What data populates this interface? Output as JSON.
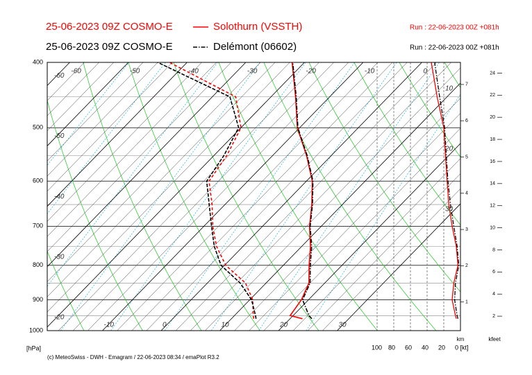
{
  "chart_data": {
    "type": "emagram",
    "series": [
      {
        "model": "25-06-2023 09Z COSMO-E",
        "name": "Solothurn (VSSTH)",
        "run": "Run : 22-06-2023 00Z +081h",
        "color": "#ff0000",
        "line": "solid",
        "temperature": [
          22.1,
          19.5,
          18.8,
          17.3,
          14.4,
          11.5,
          8.0,
          4.8,
          1.0,
          -4.2,
          -10.4,
          -15.8,
          -22.1
        ],
        "dewpoint": [
          13.8,
          13.2,
          10.5,
          6.5,
          0.2,
          -4.5,
          -8.5,
          -12.2,
          -16.6,
          -17.8,
          -20.0,
          -26.0,
          -43.0
        ],
        "wind_speed": [
          5,
          6,
          10,
          8,
          3,
          5,
          10,
          14,
          16,
          18,
          20,
          28,
          35
        ]
      },
      {
        "model": "25-06-2023 09Z COSMO-E",
        "name": "Delémont (06602)",
        "run": "Run : 22-06-2023 00Z +081h",
        "color": "#000000",
        "line": "dashdot",
        "temperature": [
          23.7,
          22.7,
          19.0,
          17.5,
          14.6,
          11.7,
          8.1,
          4.9,
          1.1,
          -4.1,
          -10.3,
          -15.7,
          -22.0
        ],
        "dewpoint": [
          14.2,
          13.6,
          10.3,
          5.6,
          -0.6,
          -4.9,
          -8.7,
          -12.7,
          -17.0,
          -18.3,
          -20.4,
          -27.0,
          -45.0
        ],
        "wind_speed": [
          3,
          4,
          7,
          6,
          2,
          4,
          8,
          12,
          15,
          17,
          19,
          25,
          31
        ]
      }
    ],
    "pressure": [
      960,
      950,
      900,
      850,
      800,
      750,
      700,
      650,
      600,
      550,
      500,
      450,
      400
    ],
    "ylabel": "[hPa]",
    "ylim": [
      1000,
      400
    ],
    "log_scale": true,
    "yticks": [
      400,
      500,
      600,
      700,
      800,
      900,
      1000
    ],
    "temperature_ticks": [
      -60,
      -50,
      -40,
      -30,
      -20,
      -10,
      0,
      10,
      20,
      30
    ],
    "wind_lim": [
      0,
      100
    ],
    "wind_ticks": [
      100,
      80,
      60,
      40,
      20,
      {
        "value": 0,
        "label": "0 [kt]"
      }
    ],
    "height_km_label": "km",
    "height_km_ticks": [
      1,
      2,
      3,
      4,
      5,
      6,
      7
    ],
    "height_kfeet_label": "kfeet",
    "height_kfeet_ticks": [
      2,
      4,
      6,
      8,
      10,
      12,
      14,
      16,
      18,
      20,
      22,
      24
    ],
    "footer": "(c) MeteoSwiss - DWH - Emagram / 22-06-2023 08:34 / emaPlot R3.2"
  }
}
